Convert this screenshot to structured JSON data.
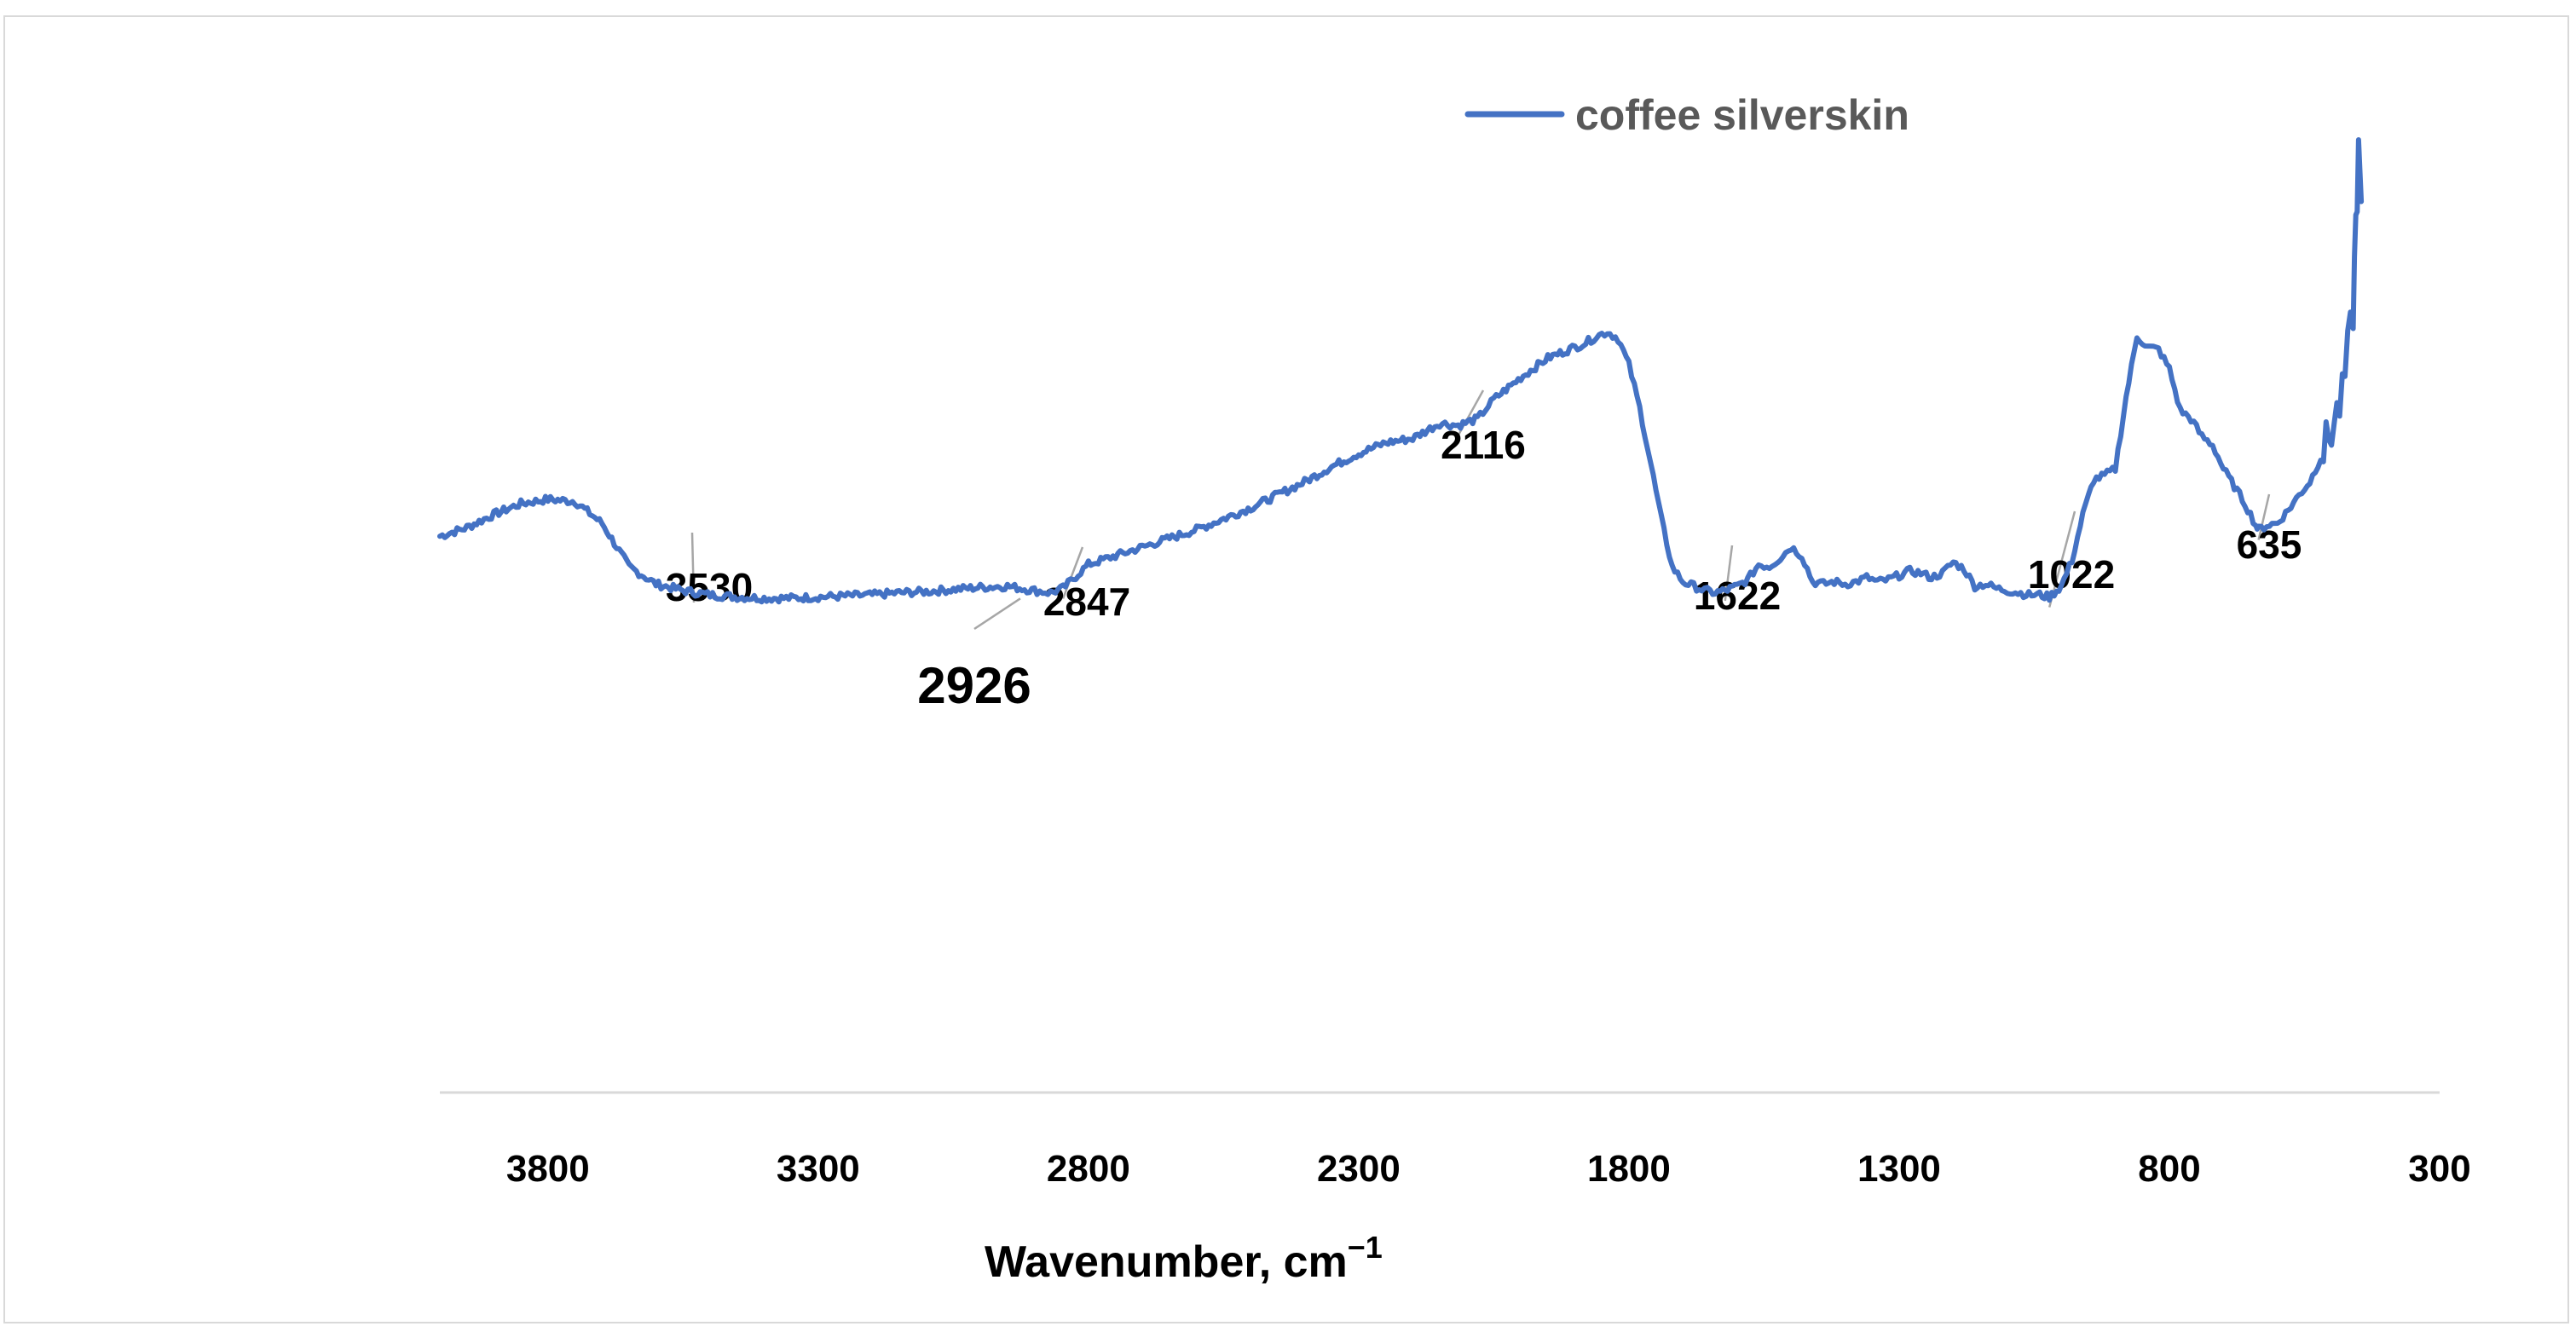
{
  "chart_data": {
    "type": "line",
    "title": "",
    "xlabel": "Wavenumber, cm",
    "xlabel_superscript": "−1",
    "ylabel": "",
    "xlim": [
      4000,
      300
    ],
    "x_reversed": true,
    "x_ticks": [
      3800,
      3300,
      2800,
      2300,
      1800,
      1300,
      800,
      300
    ],
    "grid": false,
    "legend_position": "top-right",
    "colors": {
      "series": "#4472c4",
      "axis": "#d9d9d9",
      "leader": "#a6a6a6"
    },
    "series": [
      {
        "name": "coffee silverskin",
        "x": [
          4000,
          3950,
          3900,
          3850,
          3800,
          3750,
          3700,
          3650,
          3600,
          3550,
          3500,
          3450,
          3400,
          3350,
          3300,
          3250,
          3200,
          3150,
          3100,
          3050,
          3000,
          2950,
          2900,
          2870,
          2847,
          2800,
          2750,
          2700,
          2650,
          2600,
          2550,
          2500,
          2450,
          2400,
          2350,
          2300,
          2250,
          2200,
          2150,
          2116,
          2080,
          2050,
          2000,
          1950,
          1900,
          1880,
          1860,
          1840,
          1820,
          1800,
          1780,
          1760,
          1740,
          1720,
          1700,
          1680,
          1660,
          1640,
          1622,
          1600,
          1580,
          1560,
          1540,
          1520,
          1500,
          1480,
          1460,
          1440,
          1420,
          1400,
          1380,
          1360,
          1340,
          1320,
          1300,
          1280,
          1260,
          1240,
          1220,
          1200,
          1180,
          1160,
          1140,
          1120,
          1100,
          1080,
          1060,
          1040,
          1022,
          1000,
          980,
          960,
          940,
          920,
          900,
          880,
          860,
          840,
          820,
          800,
          780,
          760,
          740,
          720,
          700,
          680,
          660,
          640,
          635,
          620,
          600,
          580,
          560,
          540,
          520,
          500,
          480,
          470,
          460,
          455,
          450,
          445
        ],
        "y": [
          51.2,
          52.0,
          53.2,
          54.2,
          54.6,
          54.4,
          52.4,
          48.4,
          46.8,
          46.2,
          45.8,
          45.6,
          45.5,
          45.5,
          45.6,
          45.7,
          45.8,
          46.0,
          46.1,
          46.3,
          46.5,
          46.6,
          46.2,
          46.0,
          46.4,
          48.6,
          49.4,
          50.2,
          51.0,
          51.8,
          52.8,
          53.8,
          55.0,
          56.2,
          57.6,
          58.8,
          59.8,
          60.2,
          61.6,
          61.4,
          62.0,
          63.8,
          65.8,
          67.6,
          68.6,
          69.0,
          69.6,
          70.0,
          69.4,
          67.0,
          63.0,
          58.0,
          52.8,
          48.4,
          47.0,
          46.6,
          46.2,
          46.0,
          46.2,
          46.6,
          47.2,
          48.6,
          48.4,
          49.2,
          50.2,
          49.4,
          47.0,
          46.8,
          47.0,
          46.8,
          47.0,
          47.4,
          47.0,
          47.2,
          47.6,
          48.0,
          47.8,
          47.4,
          47.8,
          48.8,
          48.2,
          46.6,
          46.8,
          46.4,
          46.2,
          46.0,
          45.8,
          45.8,
          45.6,
          46.6,
          49.0,
          53.2,
          56.4,
          56.8,
          57.4,
          64.0,
          69.6,
          68.6,
          68.4,
          66.6,
          62.8,
          62.0,
          60.4,
          59.6,
          57.4,
          55.8,
          54.2,
          52.2,
          51.8,
          52.2,
          52.4,
          53.6,
          55.0,
          56.2,
          58.4,
          61.0,
          64.0,
          68.0,
          72.0,
          80.0,
          86.0,
          82.0
        ]
      }
    ],
    "annotations": [
      {
        "label": "3530",
        "x": 3530
      },
      {
        "label": "2926",
        "x": 2926
      },
      {
        "label": "2847",
        "x": 2847
      },
      {
        "label": "2116",
        "x": 2116
      },
      {
        "label": "1622",
        "x": 1622
      },
      {
        "label": "1022",
        "x": 1022
      },
      {
        "label": "635",
        "x": 635
      }
    ]
  }
}
